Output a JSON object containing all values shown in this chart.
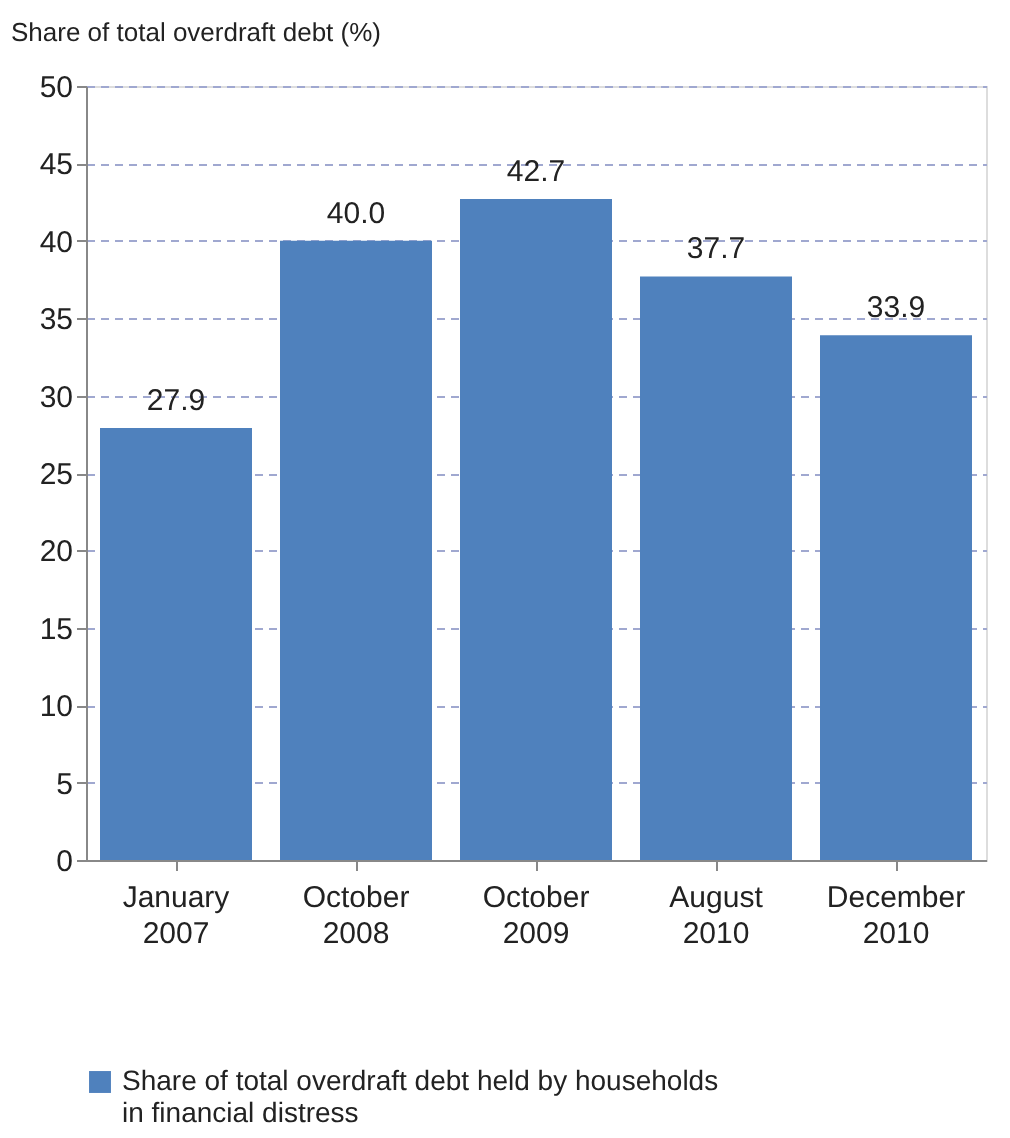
{
  "chart_data": {
    "type": "bar",
    "ylabel": "Share of total overdraft debt (%)",
    "categories": [
      "January 2007",
      "October 2008",
      "October 2009",
      "August 2010",
      "December 2010"
    ],
    "series": [
      {
        "name": "Share of total overdraft debt held by households in financial distress",
        "color": "#4f81bd",
        "values": [
          27.9,
          40.0,
          42.7,
          37.7,
          33.9
        ],
        "value_labels": [
          "27.9",
          "40.0",
          "42.7",
          "37.7",
          "33.9"
        ]
      }
    ],
    "ylim": [
      0,
      50
    ],
    "yticks": [
      0,
      5,
      10,
      15,
      20,
      25,
      30,
      35,
      40,
      45,
      50
    ],
    "grid": "y",
    "legend": "bottom"
  }
}
